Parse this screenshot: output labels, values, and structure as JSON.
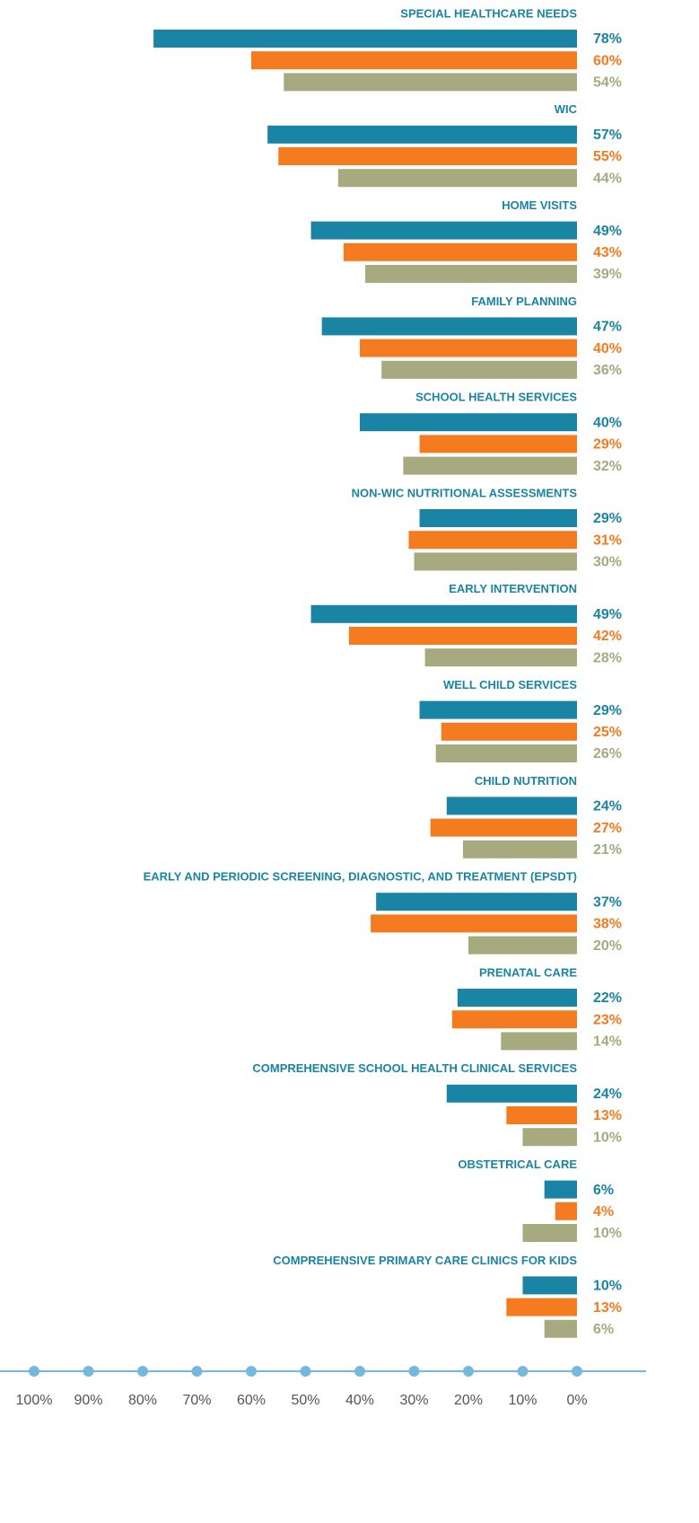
{
  "chart_data": {
    "type": "bar",
    "orientation": "horizontal",
    "categories": [
      "SPECIAL HEALTHCARE NEEDS",
      "WIC",
      "HOME VISITS",
      "FAMILY PLANNING",
      "SCHOOL HEALTH SERVICES",
      "NON-WIC NUTRITIONAL ASSESSMENTS",
      "EARLY INTERVENTION",
      "WELL CHILD SERVICES",
      "CHILD NUTRITION",
      "EARLY AND PERIODIC SCREENING, DIAGNOSTIC, AND TREATMENT (EPSDT)",
      "PRENATAL CARE",
      "COMPREHENSIVE SCHOOL HEALTH CLINICAL SERVICES",
      "OBSTETRICAL CARE",
      "COMPREHENSIVE PRIMARY CARE CLINICS FOR KIDS"
    ],
    "series": [
      {
        "color": "#1a84a4",
        "values": [
          78,
          57,
          49,
          47,
          40,
          29,
          49,
          29,
          24,
          37,
          22,
          24,
          6,
          10
        ],
        "value_labels": [
          "78%",
          "57%",
          "49%",
          "47%",
          "40%",
          "29%",
          "49%",
          "29%",
          "24%",
          "37%",
          "22%",
          "24%",
          "6%",
          "10%"
        ]
      },
      {
        "color": "#f47b20",
        "values": [
          60,
          55,
          43,
          40,
          29,
          31,
          42,
          25,
          27,
          38,
          23,
          13,
          4,
          13
        ],
        "value_labels": [
          "60%",
          "55%",
          "43%",
          "40%",
          "29%",
          "31%",
          "42%",
          "25%",
          "27%",
          "38%",
          "23%",
          "13%",
          "4%",
          "13%"
        ]
      },
      {
        "color": "#a7a97f",
        "values": [
          54,
          44,
          39,
          36,
          32,
          30,
          28,
          26,
          21,
          20,
          14,
          10,
          10,
          6
        ],
        "value_labels": [
          "54%",
          "44%",
          "39%",
          "36%",
          "32%",
          "30%",
          "28%",
          "26%",
          "21%",
          "20%",
          "14%",
          "10%",
          "10%",
          "6%"
        ]
      }
    ],
    "xlim": [
      100,
      0
    ],
    "xticks": [
      {
        "value": 100,
        "label": "100%"
      },
      {
        "value": 90,
        "label": "90%"
      },
      {
        "value": 80,
        "label": "80%"
      },
      {
        "value": 70,
        "label": "70%"
      },
      {
        "value": 60,
        "label": "60%"
      },
      {
        "value": 50,
        "label": "50%"
      },
      {
        "value": 40,
        "label": "40%"
      },
      {
        "value": 30,
        "label": "30%"
      },
      {
        "value": 20,
        "label": "20%"
      },
      {
        "value": 10,
        "label": "10%"
      },
      {
        "value": 0,
        "label": "0%"
      }
    ],
    "category_color": "#1a84a4",
    "axis_color": "#74b9dc"
  }
}
